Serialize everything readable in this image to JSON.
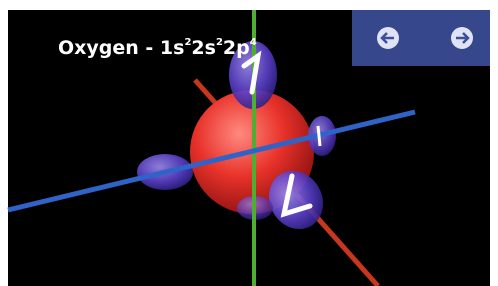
{
  "title": {
    "segments": [
      {
        "text": "Oxygen - 1s",
        "sup": "2"
      },
      {
        "text": "2s",
        "sup": "2"
      },
      {
        "text": "2p",
        "sup": "4"
      }
    ]
  }
}
